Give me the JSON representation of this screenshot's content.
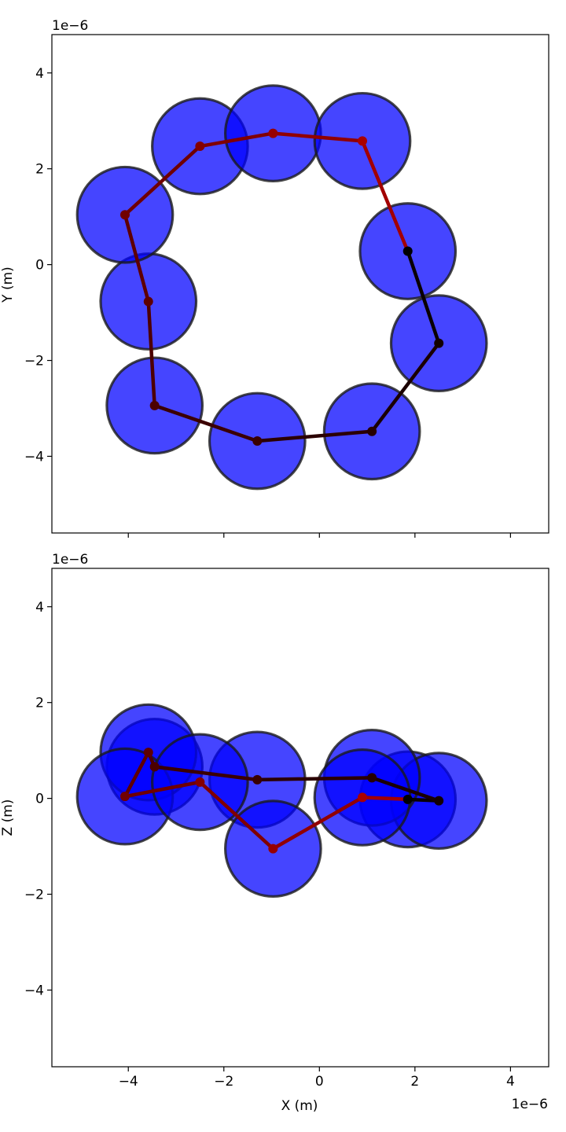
{
  "chart_data": [
    {
      "type": "scatter",
      "xlabel": "",
      "ylabel": "Y (m)",
      "x_scale_label": "",
      "y_scale_label": "1e−6",
      "xlim": [
        -5.6,
        4.8
      ],
      "ylim": [
        -5.6,
        4.8
      ],
      "xticks": [
        -4,
        -2,
        0,
        2,
        4
      ],
      "xtick_labels": [
        "",
        "",
        "",
        "",
        ""
      ],
      "yticks": [
        -4,
        -2,
        0,
        2,
        4
      ],
      "ytick_labels": [
        "−4",
        "−2",
        "0",
        "2",
        "4"
      ],
      "grid": false,
      "sphere_radius": 1.0,
      "sphere_color": "#0000ff",
      "sphere_edge_color": "#1a1a1a",
      "path_color_start": "#000000",
      "path_color_end": "#aa0000",
      "series": [
        {
          "x": [
            1.85,
            2.5,
            1.1,
            -1.3,
            -3.45,
            -3.58,
            -4.07,
            -2.5,
            -0.97,
            0.9
          ],
          "y": [
            0.28,
            -1.64,
            -3.48,
            -3.68,
            -2.94,
            -0.77,
            1.04,
            2.47,
            2.74,
            2.58
          ]
        }
      ]
    },
    {
      "type": "scatter",
      "xlabel": "X (m)",
      "ylabel": "Z (m)",
      "x_scale_label": "1e−6",
      "y_scale_label": "1e−6",
      "xlim": [
        -5.6,
        4.8
      ],
      "ylim": [
        -5.6,
        4.8
      ],
      "xticks": [
        -4,
        -2,
        0,
        2,
        4
      ],
      "xtick_labels": [
        "−4",
        "−2",
        "0",
        "2",
        "4"
      ],
      "yticks": [
        -4,
        -2,
        0,
        2,
        4
      ],
      "ytick_labels": [
        "−4",
        "−2",
        "0",
        "2",
        "4"
      ],
      "grid": false,
      "sphere_radius": 1.0,
      "sphere_color": "#0000ff",
      "sphere_edge_color": "#1a1a1a",
      "path_color_start": "#000000",
      "path_color_end": "#aa0000",
      "series": [
        {
          "x": [
            1.85,
            2.5,
            1.1,
            -1.3,
            -3.45,
            -3.58,
            -4.07,
            -2.5,
            -0.97,
            0.9
          ],
          "z": [
            -0.02,
            -0.05,
            0.43,
            0.39,
            0.66,
            0.96,
            0.04,
            0.34,
            -1.05,
            0.02
          ]
        }
      ]
    }
  ]
}
